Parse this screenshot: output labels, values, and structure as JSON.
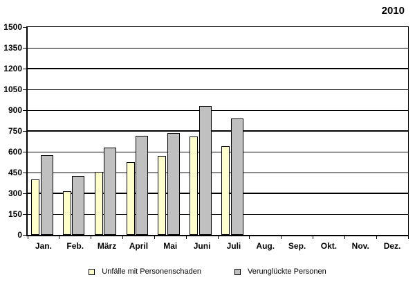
{
  "chart_data": {
    "type": "bar",
    "title": "2010",
    "categories": [
      "Jan.",
      "Feb.",
      "März",
      "April",
      "Mai",
      "Juni",
      "Juli",
      "Aug.",
      "Sep.",
      "Okt.",
      "Nov.",
      "Dez."
    ],
    "series": [
      {
        "name": "Unfälle mit Personenschaden",
        "color": "#FFFFCC",
        "border_color": "#000000",
        "values": [
          400,
          315,
          455,
          525,
          570,
          710,
          640,
          null,
          null,
          null,
          null,
          null
        ]
      },
      {
        "name": "Verunglückte Personen",
        "color": "#C0C0C0",
        "border_color": "#000000",
        "values": [
          575,
          425,
          630,
          715,
          735,
          930,
          840,
          null,
          null,
          null,
          null,
          null
        ]
      }
    ],
    "ylim": [
      0,
      1500
    ],
    "yticks": [
      0,
      150,
      300,
      450,
      600,
      750,
      900,
      1050,
      1200,
      1350,
      1500
    ],
    "emphasized_gridlines": [
      300,
      750,
      1200
    ],
    "grid": true,
    "grid_color": "#000000",
    "legend_position": "bottom"
  }
}
